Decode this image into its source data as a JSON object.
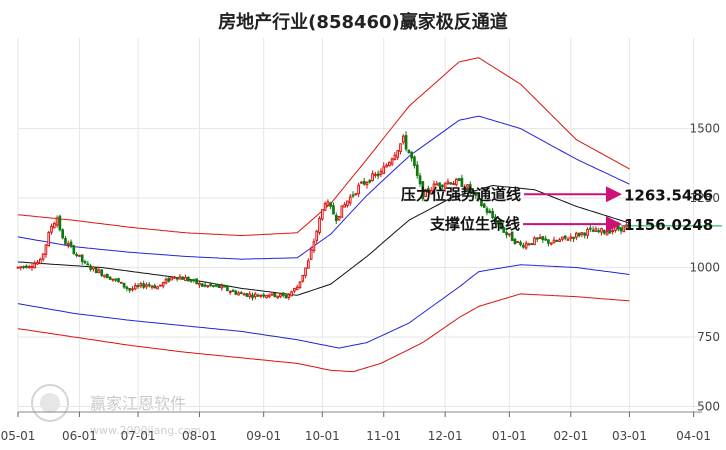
{
  "watermark": {
    "brand": "赢家江恩软件",
    "site": "www.2000jiang.com"
  },
  "chart_data": {
    "type": "candlestick",
    "title": "房地产行业(858460)赢家极反通道",
    "ylim": [
      480,
      1790
    ],
    "yticks": [
      {
        "v": 1500,
        "label": "1500"
      },
      {
        "v": 1250,
        "label": "1250"
      },
      {
        "v": 1000,
        "label": "1000"
      },
      {
        "v": 750,
        "label": "750"
      },
      {
        "v": 500,
        "label": "500"
      }
    ],
    "xticks": [
      {
        "x": 0,
        "label": "05-01"
      },
      {
        "x": 22,
        "label": "06-01"
      },
      {
        "x": 43,
        "label": "07-01"
      },
      {
        "x": 65,
        "label": "08-01"
      },
      {
        "x": 88,
        "label": "09-01"
      },
      {
        "x": 109,
        "label": "10-01"
      },
      {
        "x": 131,
        "label": "11-01"
      },
      {
        "x": 153,
        "label": "12-01"
      },
      {
        "x": 176,
        "label": "01-01"
      },
      {
        "x": 198,
        "label": "02-01"
      },
      {
        "x": 219,
        "label": "03-01"
      },
      {
        "x": 242,
        "label": "04-01"
      }
    ],
    "x_domain": [
      0,
      245
    ],
    "last_index": 219,
    "anchors": [
      [
        0,
        1000
      ],
      [
        8,
        1020
      ],
      [
        12,
        1150
      ],
      [
        14,
        1180
      ],
      [
        16,
        1100
      ],
      [
        20,
        1060
      ],
      [
        24,
        1010
      ],
      [
        28,
        990
      ],
      [
        34,
        960
      ],
      [
        40,
        920
      ],
      [
        46,
        940
      ],
      [
        50,
        930
      ],
      [
        56,
        970
      ],
      [
        60,
        960
      ],
      [
        66,
        935
      ],
      [
        72,
        930
      ],
      [
        78,
        910
      ],
      [
        84,
        900
      ],
      [
        90,
        905
      ],
      [
        96,
        895
      ],
      [
        100,
        930
      ],
      [
        104,
        1020
      ],
      [
        108,
        1170
      ],
      [
        110,
        1240
      ],
      [
        114,
        1180
      ],
      [
        118,
        1240
      ],
      [
        122,
        1290
      ],
      [
        126,
        1320
      ],
      [
        130,
        1340
      ],
      [
        134,
        1400
      ],
      [
        138,
        1460
      ],
      [
        141,
        1390
      ],
      [
        145,
        1260
      ],
      [
        150,
        1300
      ],
      [
        155,
        1310
      ],
      [
        160,
        1300
      ],
      [
        164,
        1250
      ],
      [
        170,
        1180
      ],
      [
        175,
        1120
      ],
      [
        180,
        1080
      ],
      [
        186,
        1100
      ],
      [
        192,
        1090
      ],
      [
        198,
        1110
      ],
      [
        204,
        1130
      ],
      [
        210,
        1130
      ],
      [
        215,
        1140
      ],
      [
        219,
        1150
      ]
    ],
    "mid_line": [
      [
        0,
        1020
      ],
      [
        30,
        1000
      ],
      [
        60,
        960
      ],
      [
        80,
        925
      ],
      [
        100,
        900
      ],
      [
        112,
        940
      ],
      [
        125,
        1040
      ],
      [
        140,
        1170
      ],
      [
        155,
        1250
      ],
      [
        170,
        1295
      ],
      [
        185,
        1280
      ],
      [
        200,
        1220
      ],
      [
        219,
        1160
      ]
    ],
    "upper_blue": [
      [
        0,
        1110
      ],
      [
        20,
        1075
      ],
      [
        40,
        1055
      ],
      [
        60,
        1040
      ],
      [
        80,
        1030
      ],
      [
        100,
        1035
      ],
      [
        112,
        1120
      ],
      [
        125,
        1260
      ],
      [
        140,
        1400
      ],
      [
        158,
        1530
      ],
      [
        165,
        1545
      ],
      [
        180,
        1500
      ],
      [
        200,
        1390
      ],
      [
        219,
        1300
      ]
    ],
    "lower_blue": [
      [
        0,
        870
      ],
      [
        20,
        835
      ],
      [
        40,
        810
      ],
      [
        60,
        790
      ],
      [
        80,
        770
      ],
      [
        100,
        740
      ],
      [
        115,
        710
      ],
      [
        125,
        730
      ],
      [
        140,
        800
      ],
      [
        158,
        930
      ],
      [
        165,
        985
      ],
      [
        180,
        1010
      ],
      [
        200,
        1000
      ],
      [
        219,
        975
      ]
    ],
    "upper_red": [
      [
        0,
        1190
      ],
      [
        20,
        1170
      ],
      [
        40,
        1145
      ],
      [
        60,
        1125
      ],
      [
        80,
        1115
      ],
      [
        100,
        1125
      ],
      [
        112,
        1230
      ],
      [
        125,
        1390
      ],
      [
        140,
        1580
      ],
      [
        158,
        1740
      ],
      [
        165,
        1755
      ],
      [
        180,
        1660
      ],
      [
        200,
        1460
      ],
      [
        219,
        1355
      ]
    ],
    "lower_red": [
      [
        0,
        780
      ],
      [
        20,
        750
      ],
      [
        40,
        720
      ],
      [
        60,
        695
      ],
      [
        80,
        675
      ],
      [
        100,
        655
      ],
      [
        112,
        630
      ],
      [
        120,
        625
      ],
      [
        130,
        655
      ],
      [
        145,
        730
      ],
      [
        158,
        820
      ],
      [
        165,
        860
      ],
      [
        180,
        905
      ],
      [
        200,
        895
      ],
      [
        219,
        880
      ]
    ],
    "annotations": [
      {
        "label": "压力位强势通道线",
        "value": "1263.5486",
        "y": 1263.5486,
        "color": "#cc1177"
      },
      {
        "label": "支撑位生命线",
        "value": "1156.0248",
        "y": 1156.0248,
        "color": "#cc1177"
      }
    ],
    "current_price_line": {
      "y": 1150,
      "color": "#00aa44"
    },
    "colors": {
      "up": "#dd1111",
      "down": "#117711",
      "mid": "#111111",
      "blue": "#2222dd",
      "red": "#dd1111",
      "grid": "#e6e6e6"
    }
  }
}
